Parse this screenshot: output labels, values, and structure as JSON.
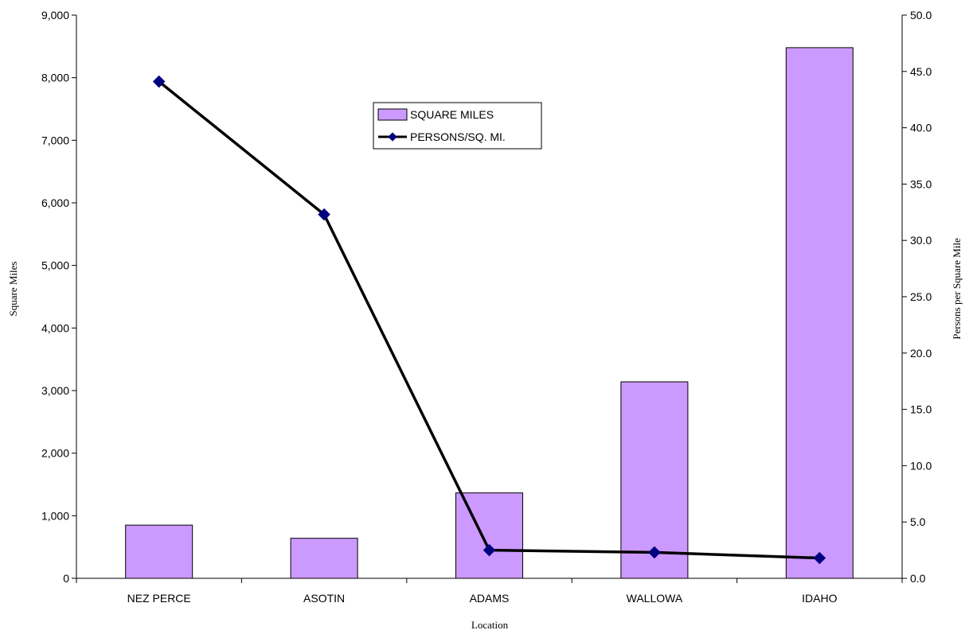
{
  "chart_data": {
    "type": "bar",
    "categories": [
      "NEZ PERCE",
      "ASOTIN",
      "ADAMS",
      "WALLOWA",
      "IDAHO"
    ],
    "series": [
      {
        "name": "SQUARE MILES",
        "type": "bar",
        "axis": "left",
        "values": [
          850,
          640,
          1365,
          3140,
          8480
        ],
        "color": "#cc99ff"
      },
      {
        "name": "PERSONS/SQ. MI.",
        "type": "line",
        "axis": "right",
        "values": [
          44.1,
          32.3,
          2.5,
          2.3,
          1.8
        ],
        "color": "#000000",
        "marker_color": "#000080"
      }
    ],
    "xlabel": "Location",
    "ylabel": "Square Miles",
    "y2label": "Persons per Square Mile",
    "ylim": [
      0,
      9000
    ],
    "y2lim": [
      0,
      50
    ],
    "yticks": [
      "0",
      "1,000",
      "2,000",
      "3,000",
      "4,000",
      "5,000",
      "6,000",
      "7,000",
      "8,000",
      "9,000"
    ],
    "y2ticks": [
      "0.0",
      "5.0",
      "10.0",
      "15.0",
      "20.0",
      "25.0",
      "30.0",
      "35.0",
      "40.0",
      "45.0",
      "50.0"
    ],
    "grid": false,
    "legend_position": "top-center"
  }
}
